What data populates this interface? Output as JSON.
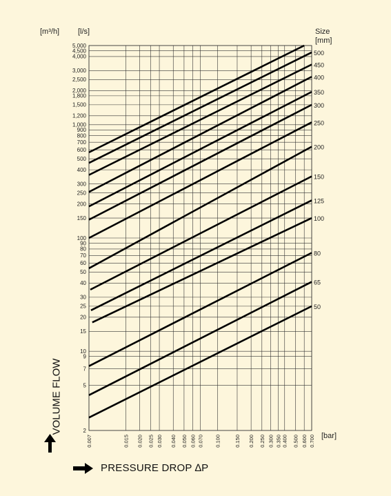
{
  "chart_data": {
    "type": "line",
    "title": "",
    "xlabel": "PRESSURE DROP ∆P",
    "ylabel": "VOLUME FLOW",
    "x_unit": "[bar]",
    "y_unit_left": "[m³/h]",
    "y_unit_right": "[l/s]",
    "size_unit_label": "Size",
    "size_unit": "[mm]",
    "xscale": "log",
    "yscale": "log",
    "grid": true,
    "xlim": [
      0.007,
      0.7
    ],
    "ylim": [
      2,
      5000
    ],
    "x_ticks": [
      "0.007",
      "0.015",
      "0.020",
      "0.025",
      "0.030",
      "0.040",
      "0.050",
      "0.060",
      "0.070",
      "0.100",
      "0.150",
      "0.200",
      "0.250",
      "0.300",
      "0.350",
      "0.400",
      "0.500",
      "0.600",
      "0.700"
    ],
    "y_ticks": [
      "5,000",
      "4,500",
      "4,000",
      "3,000",
      "2,500",
      "2,000",
      "1,800",
      "1,500",
      "1,200",
      "1,000",
      "900",
      "800",
      "700",
      "600",
      "500",
      "400",
      "300",
      "250",
      "200",
      "150",
      "100",
      "90",
      "80",
      "70",
      "60",
      "50",
      "40",
      "30",
      "25",
      "20",
      "15",
      "10",
      "9",
      "7",
      "5",
      "2"
    ],
    "series": [
      {
        "name": "50",
        "x": [
          0.007,
          0.7
        ],
        "y": [
          2.6,
          25
        ]
      },
      {
        "name": "65",
        "x": [
          0.007,
          0.7
        ],
        "y": [
          4.1,
          41
        ]
      },
      {
        "name": "80",
        "x": [
          0.007,
          0.7
        ],
        "y": [
          7.4,
          74
        ]
      },
      {
        "name": "100",
        "x": [
          0.0075,
          0.7
        ],
        "y": [
          18,
          150
        ]
      },
      {
        "name": "125",
        "x": [
          0.0073,
          0.7
        ],
        "y": [
          23,
          215
        ]
      },
      {
        "name": "150",
        "x": [
          0.0072,
          0.7
        ],
        "y": [
          35,
          350
        ]
      },
      {
        "name": "200",
        "x": [
          0.007,
          0.7
        ],
        "y": [
          54,
          640
        ]
      },
      {
        "name": "250",
        "x": [
          0.007,
          0.7
        ],
        "y": [
          100,
          1050
        ]
      },
      {
        "name": "300",
        "x": [
          0.007,
          0.7
        ],
        "y": [
          145,
          1500
        ]
      },
      {
        "name": "350",
        "x": [
          0.007,
          0.7
        ],
        "y": [
          190,
          1950
        ]
      },
      {
        "name": "400",
        "x": [
          0.007,
          0.7
        ],
        "y": [
          255,
          2650
        ]
      },
      {
        "name": "450",
        "x": [
          0.007,
          0.7
        ],
        "y": [
          360,
          3400
        ]
      },
      {
        "name": "500",
        "x": [
          0.007,
          0.7
        ],
        "y": [
          460,
          4350
        ]
      },
      {
        "name": "",
        "x": [
          0.007,
          0.6
        ],
        "y": [
          570,
          5000
        ]
      }
    ]
  },
  "colors": {
    "background": "#fdf6dc",
    "grid": "#333333",
    "line": "#000000"
  }
}
